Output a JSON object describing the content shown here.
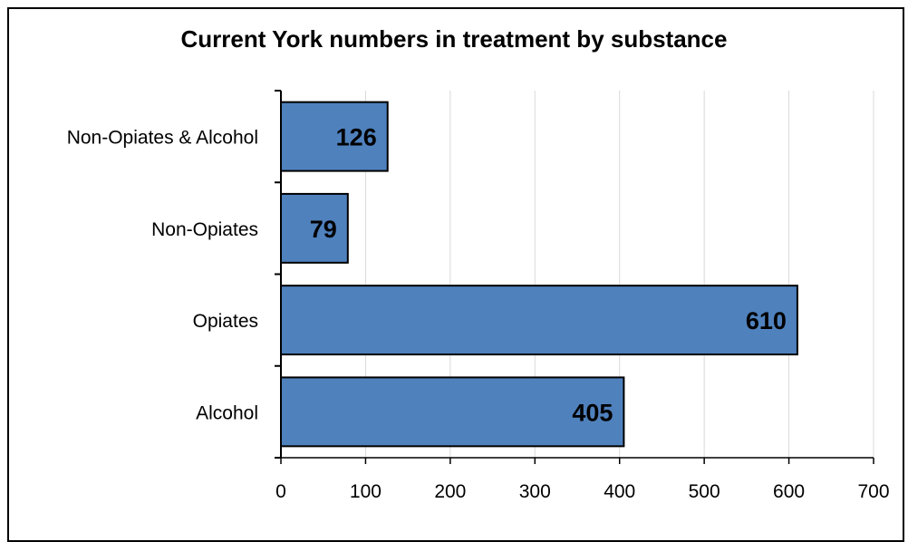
{
  "chart_data": {
    "type": "bar",
    "orientation": "horizontal",
    "title": "Current York numbers in treatment by substance",
    "xlabel": "",
    "ylabel": "",
    "categories": [
      "Alcohol",
      "Opiates",
      "Non-Opiates",
      "Non-Opiates & Alcohol"
    ],
    "values": [
      405,
      610,
      79,
      126
    ],
    "data_labels": [
      "405",
      "610",
      "79",
      "126"
    ],
    "xlim": [
      0,
      700
    ],
    "x_ticks": [
      "0",
      "100",
      "200",
      "300",
      "400",
      "500",
      "600",
      "700"
    ],
    "grid": "vertical",
    "legend": "none",
    "bar_color": "#4f81bd",
    "bar_edge_color": "#000000"
  }
}
